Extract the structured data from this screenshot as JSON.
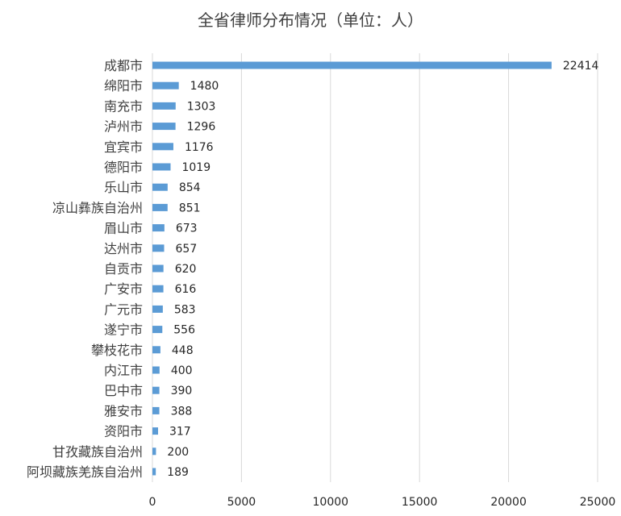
{
  "chart_data": {
    "type": "bar",
    "orientation": "horizontal",
    "title": "全省律师分布情况（单位：人）",
    "xlabel": "",
    "ylabel": "",
    "xlim": [
      0,
      25000
    ],
    "xticks": [
      0,
      5000,
      10000,
      15000,
      20000,
      25000
    ],
    "grid": true,
    "legend": "none",
    "bar_color": "#5b9bd5",
    "categories": [
      "成都市",
      "绵阳市",
      "南充市",
      "泸州市",
      "宜宾市",
      "德阳市",
      "乐山市",
      "凉山彝族自治州",
      "眉山市",
      "达州市",
      "自贡市",
      "广安市",
      "广元市",
      "遂宁市",
      "攀枝花市",
      "内江市",
      "巴中市",
      "雅安市",
      "资阳市",
      "甘孜藏族自治州",
      "阿坝藏族羌族自治州"
    ],
    "values": [
      22414,
      1480,
      1303,
      1296,
      1176,
      1019,
      854,
      851,
      673,
      657,
      620,
      616,
      583,
      556,
      448,
      400,
      390,
      388,
      317,
      200,
      189
    ]
  }
}
